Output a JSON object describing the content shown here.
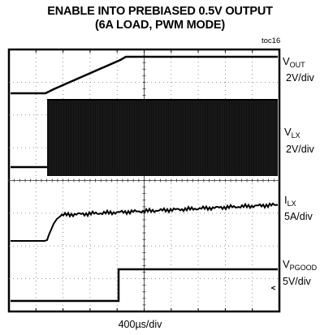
{
  "chart_data": {
    "type": "line",
    "title": "ENABLE INTO PREBIASED 0.5V OUTPUT",
    "subtitle": "(6A LOAD, PWM MODE)",
    "figure_code": "toc16",
    "xlabel": "400µs/div",
    "grid": true,
    "x_divisions": 10,
    "y_divisions": 8,
    "series": [
      {
        "name": "VOUT",
        "scale": "2V/div",
        "behavior": "flat, linear rise to ~3.3 V, then flat"
      },
      {
        "name": "VLX",
        "scale": "2V/div",
        "behavior": "switching begins at enable"
      },
      {
        "name": "ILX",
        "scale": "5A/div",
        "behavior": "ramp to ~6 A after enable, slow rise"
      },
      {
        "name": "VPGOOD",
        "scale": "5V/div",
        "behavior": "low, steps high after soft-start"
      }
    ]
  },
  "labels": {
    "vout": {
      "main": "V",
      "sub": "OUT",
      "scale": "2V/div"
    },
    "vlx": {
      "main": "V",
      "sub": "LX",
      "scale": "2V/div"
    },
    "ilx": {
      "main": "I",
      "sub": "LX",
      "scale": "5A/div"
    },
    "vpgood": {
      "main": "V",
      "sub": "PGOOD",
      "scale": "5V/div"
    }
  }
}
